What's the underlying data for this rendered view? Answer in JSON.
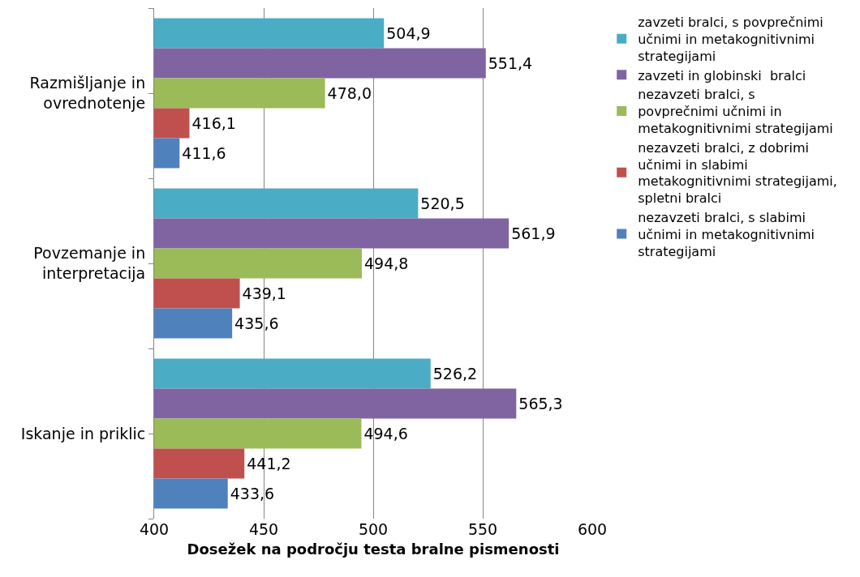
{
  "chart_data": {
    "type": "bar",
    "orientation": "horizontal",
    "xlabel": "Dosežek na področju testa bralne pismenosti",
    "categories": [
      "Razmišljanje in ovrednotenje",
      "Povzemanje in interpretacija",
      "Iskanje in priklic"
    ],
    "series": [
      {
        "name": "zavzeti bralci, s povprečnimi učnimi in metakognitivnimi strategijami",
        "color": "#4bacc6",
        "values": [
          504.9,
          520.5,
          526.2
        ],
        "value_labels": [
          "504,9",
          "520,5",
          "526,2"
        ]
      },
      {
        "name": "zavzeti in globinski  bralci",
        "color": "#8064a2",
        "values": [
          551.4,
          561.9,
          565.3
        ],
        "value_labels": [
          "551,4",
          "561,9",
          "565,3"
        ]
      },
      {
        "name": "nezavzeti bralci, s povprečnimi učnimi in metakognitivnimi strategijami",
        "color": "#9bbb59",
        "values": [
          478.0,
          494.8,
          494.6
        ],
        "value_labels": [
          "478,0",
          "494,8",
          "494,6"
        ]
      },
      {
        "name": "nezavzeti bralci, z dobrimi učnimi in slabimi metakognitivnimi strategijami, spletni bralci",
        "color": "#c0504d",
        "values": [
          416.1,
          439.1,
          441.2
        ],
        "value_labels": [
          "416,1",
          "439,1",
          "441,2"
        ]
      },
      {
        "name": "nezavzeti bralci, s slabimi učnimi in metakognitivnimi strategijami",
        "color": "#4f81bd",
        "values": [
          411.6,
          435.6,
          433.6
        ],
        "value_labels": [
          "411,6",
          "435,6",
          "433,6"
        ]
      }
    ],
    "xlim": [
      400,
      600
    ],
    "xticks": [
      400,
      450,
      500,
      550,
      600
    ],
    "grid": "x",
    "legend": "right"
  }
}
